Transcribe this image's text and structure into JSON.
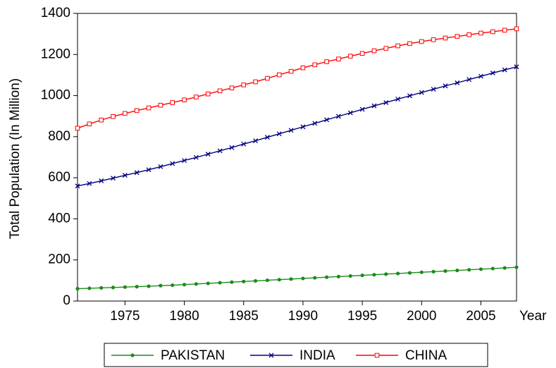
{
  "chart_data": {
    "type": "line",
    "x_label": "Year",
    "y_label": "Total Population (In Million)",
    "x": [
      1971,
      1972,
      1973,
      1974,
      1975,
      1976,
      1977,
      1978,
      1979,
      1980,
      1981,
      1982,
      1983,
      1984,
      1985,
      1986,
      1987,
      1988,
      1989,
      1990,
      1991,
      1992,
      1993,
      1994,
      1995,
      1996,
      1997,
      1998,
      1999,
      2000,
      2001,
      2002,
      2003,
      2004,
      2005,
      2006,
      2007,
      2008
    ],
    "series": [
      {
        "name": "PAKISTAN",
        "color": "#1a8c1a",
        "marker": "circle",
        "values": [
          60,
          62,
          64,
          66,
          68,
          70,
          72,
          75,
          77,
          80,
          83,
          86,
          89,
          92,
          95,
          98,
          101,
          104,
          107,
          110,
          113,
          116,
          119,
          122,
          125,
          128,
          131,
          134,
          137,
          140,
          143,
          146,
          149,
          152,
          155,
          158,
          161,
          164
        ]
      },
      {
        "name": "INDIA",
        "color": "#000080",
        "marker": "x",
        "values": [
          560,
          572,
          585,
          598,
          612,
          625,
          639,
          654,
          669,
          684,
          699,
          715,
          731,
          747,
          764,
          780,
          797,
          814,
          831,
          848,
          865,
          882,
          899,
          916,
          933,
          950,
          966,
          983,
          999,
          1015,
          1031,
          1047,
          1062,
          1078,
          1094,
          1110,
          1125,
          1140
        ]
      },
      {
        "name": "CHINA",
        "color": "#ff0000",
        "marker": "square",
        "values": [
          841,
          862,
          881,
          898,
          913,
          927,
          940,
          953,
          966,
          979,
          993,
          1008,
          1023,
          1037,
          1052,
          1067,
          1084,
          1101,
          1118,
          1135,
          1150,
          1165,
          1178,
          1192,
          1205,
          1218,
          1230,
          1242,
          1253,
          1263,
          1272,
          1280,
          1288,
          1296,
          1304,
          1311,
          1318,
          1325
        ]
      }
    ],
    "xlim": [
      1971,
      2008
    ],
    "xticks": [
      1975,
      1980,
      1985,
      1990,
      1995,
      2000,
      2005
    ],
    "ylim": [
      0,
      1400
    ],
    "yticks": [
      0,
      200,
      400,
      600,
      800,
      1000,
      1200,
      1400
    ],
    "legend": "bottom"
  }
}
